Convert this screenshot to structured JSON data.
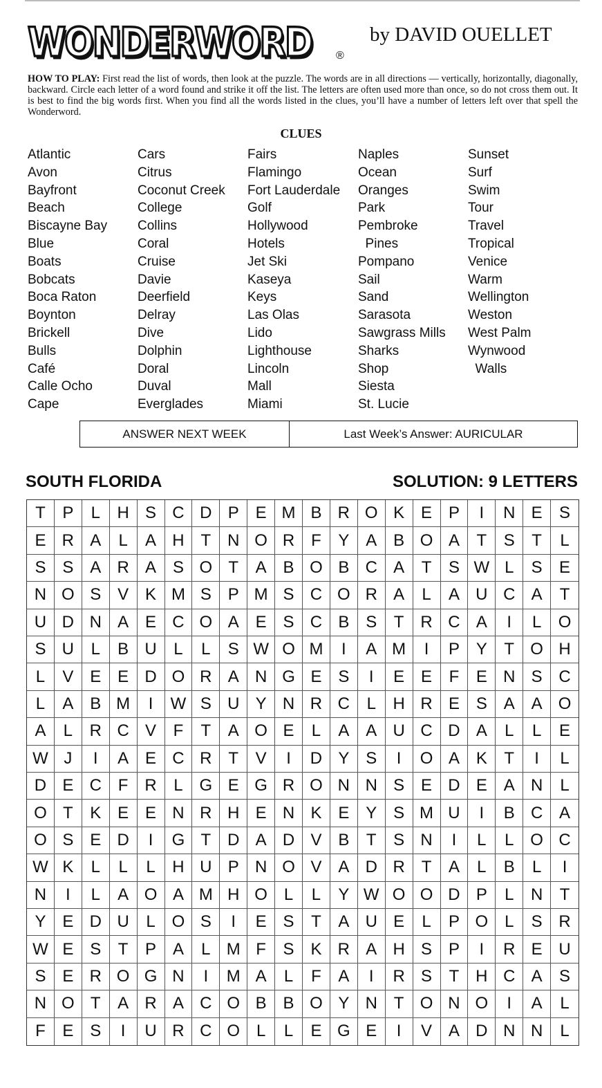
{
  "header": {
    "logo": "WONDERWORD",
    "registered": "®",
    "byline": "by DAVID OUELLET"
  },
  "how_to_play": {
    "label": "HOW TO PLAY:",
    "text": " First read the list of words, then look at the puzzle. The words are in all directions — vertically, horizontally, diagonally, backward. Circle each letter of a word found and strike it off the list. The letters are often used more than once, so do not cross them out. It is best to find the big words first. When you find all the words listed in the clues, you’ll have a number of letters left over that spell the Wonderword."
  },
  "clues": {
    "title": "CLUES",
    "columns": [
      [
        "Atlantic",
        "Avon",
        "Bayfront",
        "Beach",
        "Biscayne Bay",
        "Blue",
        "Boats",
        "Bobcats",
        "Boca Raton",
        "Boynton",
        "Brickell",
        "Bulls",
        "Café",
        "Calle Ocho",
        "Cape"
      ],
      [
        "Cars",
        "Citrus",
        "Coconut Creek",
        "College",
        "Collins",
        "Coral",
        "Cruise",
        "Davie",
        "Deerfield",
        "Delray",
        "Dive",
        "Dolphin",
        "Doral",
        "Duval",
        "Everglades"
      ],
      [
        "Fairs",
        "Flamingo",
        "Fort Lauderdale",
        "Golf",
        "Hollywood",
        "Hotels",
        "Jet Ski",
        "Kaseya",
        "Keys",
        "Las Olas",
        "Lido",
        "Lighthouse",
        "Lincoln",
        "Mall",
        "Miami"
      ],
      [
        "Naples",
        "Ocean",
        "Oranges",
        "Park",
        "Pembroke",
        "  Pines",
        "Pompano",
        "Sail",
        "Sand",
        "Sarasota",
        "Sawgrass Mills",
        "Sharks",
        "Shop",
        "Siesta",
        "St. Lucie"
      ],
      [
        "Sunset",
        "Surf",
        "Swim",
        "Tour",
        "Travel",
        "Tropical",
        "Venice",
        "Warm",
        "Wellington",
        "Weston",
        "West Palm",
        "Wynwood",
        "  Walls"
      ]
    ]
  },
  "answer": {
    "next_week": "ANSWER NEXT WEEK",
    "last_week": "Last Week’s Answer:  AURICULAR"
  },
  "puzzle": {
    "theme": "SOUTH FLORIDA",
    "solution": "SOLUTION: 9 LETTERS",
    "grid": [
      "TPLHSCDPEMBROKEPINES",
      "ERALAHTNORFYABOATSTL",
      "SSARASOTABOBCATSWLSE",
      "NOSVKMSPMSCORALAUCAT",
      "UDNAECOAESCBSTRCAILO",
      "SULBULLSWOMIAMIPYTOH",
      "LVEEDORANGESIEEFENSC",
      "LABMIWSUYNRCLHRESAAO",
      "ALRCVFTAOELAAUCDALLE",
      "WJIAECRTVIDYSIOAKTIL",
      "DECFRLGEGRONNSEDEANL",
      "OTKEENRHENKEYSMUIBCA",
      "OSEDIGTDADVBTSNILLOC",
      "WKLLLHUPNOVADRTALBLI",
      "NILAOAMHOLLYWOODPLNT",
      "YEDULOSIESTAUELPOLSR",
      "WESTPALMFSKRAHSPIREU",
      "SEROGNIMALFAIRSTHCAS",
      "NOTARACOBBOYNTONOIAL",
      "FESIURCOLLEGEIVADNNL"
    ]
  }
}
